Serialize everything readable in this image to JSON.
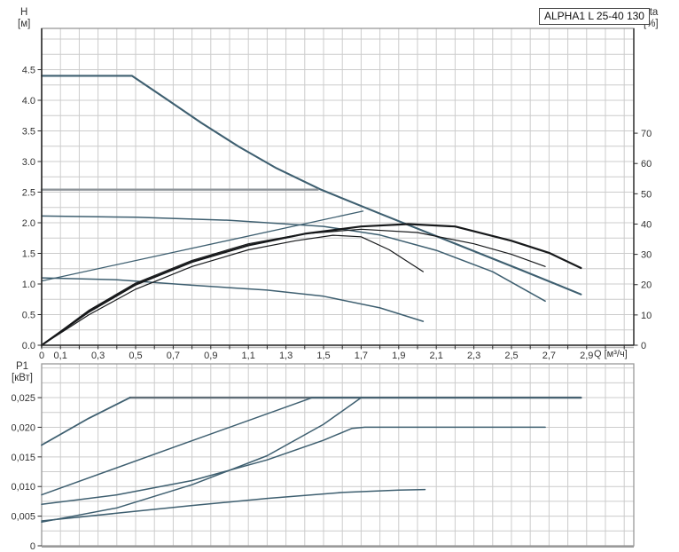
{
  "model_badge": "ALPHA1 L 25-40 130",
  "axes": {
    "h_unit_line1": "H",
    "h_unit_line2": "[м]",
    "eta_unit_line1": "eta",
    "eta_unit_line2": "[%]",
    "p1_unit_line1": "P1",
    "p1_unit_line2": "[кВт]",
    "q_label": "Q [м³/ч]"
  },
  "colors": {
    "curve_blue": "#3e5f70",
    "curve_black": "#17191b",
    "setpoint_gray": "#8e9499",
    "limit_gray": "#5f6d76",
    "grid": "#cccccc",
    "frame": "#999999",
    "axis_dark": "#2b2b2b",
    "tick_text": "#333333"
  },
  "chart_data": [
    {
      "type": "line",
      "role": "head-flow-chart",
      "xlabel": "Q [м³/ч]",
      "ylabel_left": "H [м]",
      "ylabel_right": "eta [%]",
      "xlim": [
        0,
        3.151
      ],
      "ylim_left": [
        0,
        5.174
      ],
      "ylim_right": [
        0,
        104.6
      ],
      "x_grid_step": 0.1,
      "y_grid_step": 0.25,
      "grid": true,
      "legend": "none",
      "x_ticks": [
        {
          "v": 0,
          "l": "0"
        },
        {
          "v": 0.1,
          "l": "0,1"
        },
        {
          "v": 0.3,
          "l": "0,3"
        },
        {
          "v": 0.5,
          "l": "0,5"
        },
        {
          "v": 0.7,
          "l": "0,7"
        },
        {
          "v": 0.9,
          "l": "0,9"
        },
        {
          "v": 1.1,
          "l": "1,1"
        },
        {
          "v": 1.3,
          "l": "1,3"
        },
        {
          "v": 1.5,
          "l": "1,5"
        },
        {
          "v": 1.7,
          "l": "1,7"
        },
        {
          "v": 1.9,
          "l": "1,9"
        },
        {
          "v": 2.1,
          "l": "2,1"
        },
        {
          "v": 2.3,
          "l": "2,3"
        },
        {
          "v": 2.5,
          "l": "2,5"
        },
        {
          "v": 2.7,
          "l": "2,7"
        },
        {
          "v": 2.9,
          "l": "2,9"
        }
      ],
      "y_ticks_left": [
        {
          "v": 0.0,
          "l": "0.0"
        },
        {
          "v": 0.5,
          "l": "0.5"
        },
        {
          "v": 1.0,
          "l": "1.0"
        },
        {
          "v": 1.5,
          "l": "1.5"
        },
        {
          "v": 2.0,
          "l": "2.0"
        },
        {
          "v": 2.5,
          "l": "2.5"
        },
        {
          "v": 3.0,
          "l": "3.0"
        },
        {
          "v": 3.5,
          "l": "3.5"
        },
        {
          "v": 4.0,
          "l": "4.0"
        },
        {
          "v": 4.5,
          "l": "4.5"
        }
      ],
      "y_ticks_right": [
        {
          "v": 0,
          "l": "0"
        },
        {
          "v": 10,
          "l": "10"
        },
        {
          "v": 20,
          "l": "20"
        },
        {
          "v": 30,
          "l": "30"
        },
        {
          "v": 40,
          "l": "40"
        },
        {
          "v": 50,
          "l": "50"
        },
        {
          "v": 60,
          "l": "60"
        },
        {
          "v": 70,
          "l": "70"
        }
      ],
      "series": [
        {
          "name": "speed-3-head-curve",
          "axis": "left",
          "color": "#3e5f70",
          "width": 2.1,
          "points": [
            [
              0,
              4.4
            ],
            [
              0.48,
              4.4
            ],
            [
              0.65,
              4.05
            ],
            [
              0.85,
              3.63
            ],
            [
              1.05,
              3.24
            ],
            [
              1.25,
              2.89
            ],
            [
              1.48,
              2.55
            ],
            [
              1.8,
              2.15
            ],
            [
              2.2,
              1.66
            ],
            [
              2.55,
              1.23
            ],
            [
              2.87,
              0.83
            ]
          ]
        },
        {
          "name": "cp2-setpoint-line",
          "axis": "left",
          "color": "#8e9499",
          "width": 2.4,
          "points": [
            [
              0,
              2.54
            ],
            [
              1.47,
              2.54
            ]
          ]
        },
        {
          "name": "speed-2-head-curve",
          "axis": "left",
          "color": "#3e5f70",
          "width": 1.5,
          "points": [
            [
              0,
              2.11
            ],
            [
              0.5,
              2.09
            ],
            [
              1.0,
              2.04
            ],
            [
              1.5,
              1.94
            ],
            [
              1.8,
              1.8
            ],
            [
              2.1,
              1.55
            ],
            [
              2.4,
              1.2
            ],
            [
              2.68,
              0.72
            ]
          ]
        },
        {
          "name": "speed-1-head-curve",
          "axis": "left",
          "color": "#3e5f70",
          "width": 1.5,
          "points": [
            [
              0,
              1.1
            ],
            [
              0.4,
              1.07
            ],
            [
              0.8,
              0.98
            ],
            [
              1.2,
              0.9
            ],
            [
              1.5,
              0.8
            ],
            [
              1.8,
              0.61
            ],
            [
              2.03,
              0.39
            ]
          ]
        },
        {
          "name": "pp2-proportional-line",
          "axis": "left",
          "color": "#3e5f70",
          "width": 1.3,
          "points": [
            [
              0,
              1.05
            ],
            [
              1.71,
              2.19
            ]
          ]
        },
        {
          "name": "efficiency-speed-3",
          "axis": "right",
          "color": "#17191b",
          "width": 2.2,
          "points": [
            [
              0,
              0
            ],
            [
              0.25,
              11
            ],
            [
              0.5,
              20
            ],
            [
              0.8,
              27.5
            ],
            [
              1.1,
              33
            ],
            [
              1.4,
              36.8
            ],
            [
              1.7,
              39.2
            ],
            [
              1.95,
              40
            ],
            [
              2.2,
              39.2
            ],
            [
              2.5,
              34.5
            ],
            [
              2.7,
              30.5
            ],
            [
              2.87,
              25.5
            ]
          ]
        },
        {
          "name": "efficiency-speed-2",
          "axis": "right",
          "color": "#17191b",
          "width": 1.2,
          "points": [
            [
              0,
              0
            ],
            [
              0.25,
              11.5
            ],
            [
              0.5,
              20.5
            ],
            [
              0.8,
              28
            ],
            [
              1.1,
              33.5
            ],
            [
              1.4,
              36.8
            ],
            [
              1.7,
              38.3
            ],
            [
              2.0,
              37.2
            ],
            [
              2.3,
              33.5
            ],
            [
              2.5,
              30
            ],
            [
              2.68,
              26
            ]
          ]
        },
        {
          "name": "efficiency-speed-1",
          "axis": "right",
          "color": "#17191b",
          "width": 1.2,
          "points": [
            [
              0,
              0
            ],
            [
              0.25,
              10
            ],
            [
              0.5,
              18.5
            ],
            [
              0.8,
              26
            ],
            [
              1.1,
              31.5
            ],
            [
              1.35,
              34.5
            ],
            [
              1.55,
              36.3
            ],
            [
              1.7,
              35.8
            ],
            [
              1.85,
              31.5
            ],
            [
              2.03,
              24.3
            ]
          ]
        }
      ]
    },
    {
      "type": "line",
      "role": "power-flow-chart",
      "ylabel_left": "P1 [кВт]",
      "xlim": [
        0,
        3.151
      ],
      "ylim_left": [
        0,
        0.0307
      ],
      "x_grid_step": 0.1,
      "y_grid_step": 0.0025,
      "grid": true,
      "legend": "none",
      "x_ticks": [],
      "y_ticks_left": [
        {
          "v": 0,
          "l": "0"
        },
        {
          "v": 0.005,
          "l": "0,005"
        },
        {
          "v": 0.01,
          "l": "0,010"
        },
        {
          "v": 0.015,
          "l": "0,015"
        },
        {
          "v": 0.02,
          "l": "0,020"
        },
        {
          "v": 0.025,
          "l": "0,025"
        }
      ],
      "y_ticks_right": [],
      "series": [
        {
          "name": "p1-max-limit-line",
          "axis": "left",
          "color": "#5f6d76",
          "width": 2.4,
          "points": [
            [
              0.47,
              0.025
            ],
            [
              2.87,
              0.025
            ]
          ]
        },
        {
          "name": "p1-speed-3",
          "axis": "left",
          "color": "#3e5f70",
          "width": 1.8,
          "points": [
            [
              0,
              0.017
            ],
            [
              0.25,
              0.0215
            ],
            [
              0.47,
              0.025
            ]
          ]
        },
        {
          "name": "p1-cp2",
          "axis": "left",
          "color": "#3e5f70",
          "width": 1.5,
          "points": [
            [
              0,
              0.0086
            ],
            [
              0.7,
              0.0166
            ],
            [
              1.44,
              0.025
            ],
            [
              2.87,
              0.025
            ]
          ]
        },
        {
          "name": "p1-speed-2",
          "axis": "left",
          "color": "#3e5f70",
          "width": 1.5,
          "points": [
            [
              0,
              0.007
            ],
            [
              0.4,
              0.0086
            ],
            [
              0.8,
              0.011
            ],
            [
              1.2,
              0.0145
            ],
            [
              1.5,
              0.0178
            ],
            [
              1.65,
              0.0198
            ],
            [
              1.72,
              0.02
            ],
            [
              2.68,
              0.02
            ]
          ]
        },
        {
          "name": "p1-pp2",
          "axis": "left",
          "color": "#3e5f70",
          "width": 1.5,
          "points": [
            [
              0,
              0.004
            ],
            [
              0.4,
              0.0064
            ],
            [
              0.8,
              0.0103
            ],
            [
              1.2,
              0.0152
            ],
            [
              1.5,
              0.0205
            ],
            [
              1.7,
              0.025
            ]
          ]
        },
        {
          "name": "p1-speed-1",
          "axis": "left",
          "color": "#3e5f70",
          "width": 1.5,
          "points": [
            [
              0,
              0.0042
            ],
            [
              0.4,
              0.0055
            ],
            [
              0.8,
              0.0068
            ],
            [
              1.2,
              0.008
            ],
            [
              1.6,
              0.009
            ],
            [
              1.9,
              0.0094
            ],
            [
              2.04,
              0.0095
            ]
          ]
        }
      ]
    }
  ]
}
